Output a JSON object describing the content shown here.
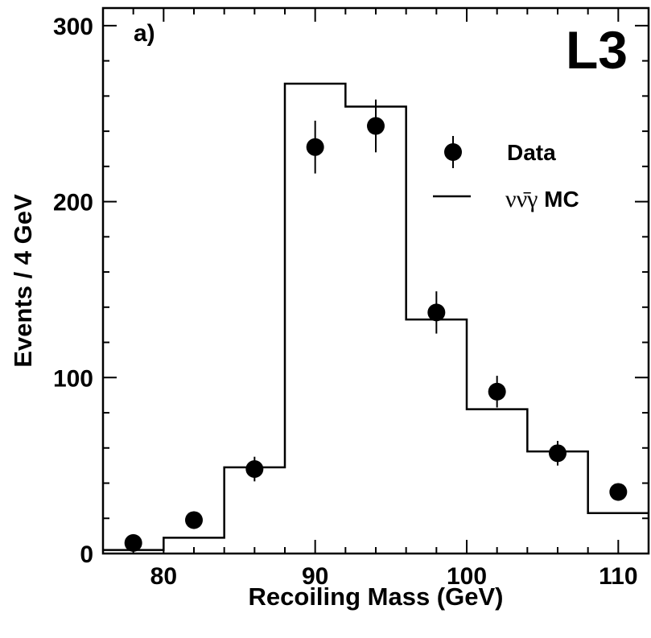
{
  "chart_data": {
    "type": "histogram",
    "panel_label": "a)",
    "experiment_label": "L3",
    "xlabel": "Recoiling Mass (GeV)",
    "ylabel": "Events / 4 GeV",
    "xlim": [
      76,
      112
    ],
    "ylim": [
      0,
      310
    ],
    "x_ticks": [
      80,
      90,
      100,
      110
    ],
    "y_ticks": [
      0,
      100,
      200,
      300
    ],
    "grid": false,
    "legend": {
      "placement": "top-right",
      "entries": [
        {
          "label": "Data",
          "kind": "marker"
        },
        {
          "label_greek": "νν̄γ",
          "label_text": " MC",
          "kind": "line"
        }
      ]
    },
    "series": [
      {
        "name": "Data",
        "style": "points-with-errors",
        "x": [
          78,
          82,
          86,
          90,
          94,
          98,
          102,
          106,
          110
        ],
        "y": [
          6,
          19,
          48,
          231,
          243,
          137,
          92,
          57,
          35
        ],
        "yerr": [
          3,
          5,
          7,
          15,
          15,
          12,
          9,
          7,
          5
        ]
      },
      {
        "name": "MC",
        "style": "step",
        "bin_edges": [
          76,
          80,
          84,
          88,
          92,
          96,
          100,
          104,
          108,
          112
        ],
        "values": [
          2,
          9,
          49,
          267,
          254,
          133,
          82,
          58,
          23
        ]
      }
    ]
  }
}
